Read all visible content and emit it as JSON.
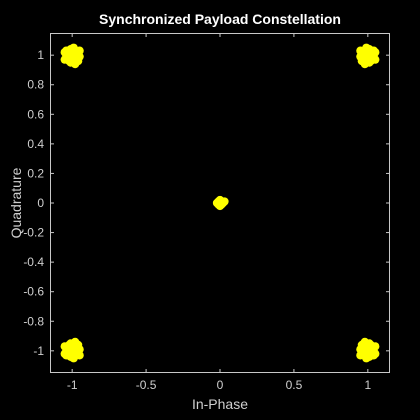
{
  "colors": {
    "background": "#000000",
    "axes_background": "#000000",
    "axes_line": "#c8c8c8",
    "tick_text": "#cfcfcf",
    "title_text": "#ffffff",
    "marker": "#ffff00"
  },
  "chart_data": {
    "type": "scatter",
    "title": "Synchronized Payload Constellation",
    "xlabel": "In-Phase",
    "ylabel": "Quadrature",
    "xlim": [
      -1.15,
      1.15
    ],
    "ylim": [
      -1.15,
      1.15
    ],
    "xticks": [
      -1,
      -0.5,
      0,
      0.5,
      1
    ],
    "xtick_labels": [
      "-1",
      "-0.5",
      "0",
      "0.5",
      "1"
    ],
    "yticks": [
      -1,
      -0.8,
      -0.6,
      -0.4,
      -0.2,
      0,
      0.2,
      0.4,
      0.6,
      0.8,
      1
    ],
    "ytick_labels": [
      "-1",
      "-0.8",
      "-0.6",
      "-0.4",
      "-0.2",
      "0",
      "0.2",
      "0.4",
      "0.6",
      "0.8",
      "1"
    ],
    "grid": false,
    "marker": "dot",
    "series": [
      {
        "color": "#ffff00",
        "clusters": [
          {
            "center": [
              1,
              1
            ],
            "spread": 0.04
          },
          {
            "center": [
              -1,
              1
            ],
            "spread": 0.04
          },
          {
            "center": [
              1,
              -1
            ],
            "spread": 0.04
          },
          {
            "center": [
              -1,
              -1
            ],
            "spread": 0.04
          },
          {
            "center": [
              0,
              0
            ],
            "spread": 0.015
          }
        ],
        "points": [
          [
            0.98,
            0.98
          ],
          [
            1.02,
            0.99
          ],
          [
            0.97,
            1.02
          ],
          [
            1.03,
            1.01
          ],
          [
            0.99,
            0.95
          ],
          [
            1.01,
            1.04
          ],
          [
            0.95,
            0.99
          ],
          [
            1.05,
            0.97
          ],
          [
            0.96,
            0.96
          ],
          [
            1.04,
            1.03
          ],
          [
            1.0,
            1.0
          ],
          [
            0.98,
            1.03
          ],
          [
            1.02,
            0.96
          ],
          [
            0.97,
            0.98
          ],
          [
            1.03,
            0.98
          ],
          [
            0.99,
            1.05
          ],
          [
            1.01,
            0.95
          ],
          [
            0.96,
            1.01
          ],
          [
            1.04,
            1.0
          ],
          [
            0.98,
            0.94
          ],
          [
            1.0,
            0.97
          ],
          [
            1.02,
            1.02
          ],
          [
            0.95,
            1.03
          ],
          [
            1.05,
            1.02
          ],
          [
            0.99,
            1.01
          ],
          [
            -0.98,
            0.98
          ],
          [
            -1.02,
            0.99
          ],
          [
            -0.97,
            1.02
          ],
          [
            -1.03,
            1.01
          ],
          [
            -0.99,
            0.95
          ],
          [
            -1.01,
            1.04
          ],
          [
            -0.95,
            0.99
          ],
          [
            -1.05,
            0.97
          ],
          [
            -0.96,
            0.96
          ],
          [
            -1.04,
            1.03
          ],
          [
            -1.0,
            1.0
          ],
          [
            -0.98,
            1.03
          ],
          [
            -1.02,
            0.96
          ],
          [
            -0.97,
            0.98
          ],
          [
            -1.03,
            0.98
          ],
          [
            -0.99,
            1.05
          ],
          [
            -1.01,
            0.95
          ],
          [
            -0.96,
            1.01
          ],
          [
            -1.04,
            1.0
          ],
          [
            -0.98,
            0.94
          ],
          [
            -1.0,
            0.97
          ],
          [
            -1.02,
            1.02
          ],
          [
            -0.95,
            1.03
          ],
          [
            -1.05,
            1.02
          ],
          [
            -0.99,
            1.01
          ],
          [
            0.98,
            -0.98
          ],
          [
            1.02,
            -0.99
          ],
          [
            0.97,
            -1.02
          ],
          [
            1.03,
            -1.01
          ],
          [
            0.99,
            -0.95
          ],
          [
            1.01,
            -1.04
          ],
          [
            0.95,
            -0.99
          ],
          [
            1.05,
            -0.97
          ],
          [
            0.96,
            -0.96
          ],
          [
            1.04,
            -1.03
          ],
          [
            1.0,
            -1.0
          ],
          [
            0.98,
            -1.03
          ],
          [
            1.02,
            -0.96
          ],
          [
            0.97,
            -0.98
          ],
          [
            1.03,
            -0.98
          ],
          [
            0.99,
            -1.05
          ],
          [
            1.01,
            -0.95
          ],
          [
            0.96,
            -1.01
          ],
          [
            1.04,
            -1.0
          ],
          [
            0.98,
            -0.94
          ],
          [
            1.0,
            -0.97
          ],
          [
            1.02,
            -1.02
          ],
          [
            0.95,
            -1.03
          ],
          [
            1.05,
            -1.02
          ],
          [
            0.99,
            -1.01
          ],
          [
            -0.98,
            -0.98
          ],
          [
            -1.02,
            -0.99
          ],
          [
            -0.97,
            -1.02
          ],
          [
            -1.03,
            -1.01
          ],
          [
            -0.99,
            -0.95
          ],
          [
            -1.01,
            -1.04
          ],
          [
            -0.95,
            -0.99
          ],
          [
            -1.05,
            -0.97
          ],
          [
            -0.96,
            -0.96
          ],
          [
            -1.04,
            -1.03
          ],
          [
            -1.0,
            -1.0
          ],
          [
            -0.98,
            -1.03
          ],
          [
            -1.02,
            -0.96
          ],
          [
            -0.97,
            -0.98
          ],
          [
            -1.03,
            -0.98
          ],
          [
            -0.99,
            -1.05
          ],
          [
            -1.01,
            -0.95
          ],
          [
            -0.96,
            -1.01
          ],
          [
            -1.04,
            -1.0
          ],
          [
            -0.98,
            -0.94
          ],
          [
            -1.0,
            -0.97
          ],
          [
            -1.02,
            -1.02
          ],
          [
            -0.95,
            -1.03
          ],
          [
            -1.05,
            -1.02
          ],
          [
            -0.99,
            -1.01
          ],
          [
            0.0,
            0.0
          ],
          [
            -0.01,
            0.01
          ],
          [
            0.01,
            -0.01
          ],
          [
            0.0,
            0.02
          ],
          [
            -0.01,
            -0.01
          ],
          [
            0.02,
            0.0
          ],
          [
            0.03,
            0.01
          ],
          [
            -0.02,
            0.0
          ],
          [
            0.01,
            0.01
          ],
          [
            0.0,
            -0.02
          ]
        ]
      }
    ]
  }
}
